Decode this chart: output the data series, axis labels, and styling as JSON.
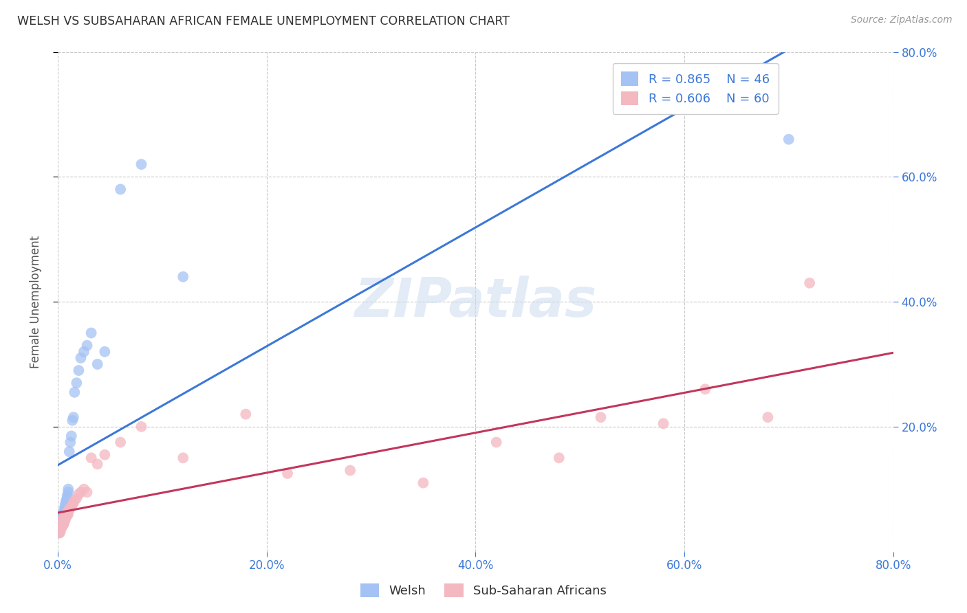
{
  "title": "WELSH VS SUBSAHARAN AFRICAN FEMALE UNEMPLOYMENT CORRELATION CHART",
  "source": "Source: ZipAtlas.com",
  "ylabel": "Female Unemployment",
  "watermark": "ZIPatlas",
  "xlim": [
    0.0,
    0.8
  ],
  "ylim": [
    0.0,
    0.8
  ],
  "xticks": [
    0.0,
    0.2,
    0.4,
    0.6,
    0.8
  ],
  "yticks": [
    0.2,
    0.4,
    0.6,
    0.8
  ],
  "background_color": "#ffffff",
  "grid_color": "#c8c8c8",
  "blue_scatter_color": "#a4c2f4",
  "pink_scatter_color": "#f4b8c1",
  "blue_line_color": "#3c78d8",
  "pink_line_color": "#c2365c",
  "legend_label_blue": "R = 0.865    N = 46",
  "legend_label_pink": "R = 0.606    N = 60",
  "legend_bottom_blue": "Welsh",
  "legend_bottom_pink": "Sub-Saharan Africans",
  "welsh_x": [
    0.001,
    0.001,
    0.001,
    0.002,
    0.002,
    0.002,
    0.002,
    0.003,
    0.003,
    0.003,
    0.003,
    0.004,
    0.004,
    0.004,
    0.005,
    0.005,
    0.005,
    0.006,
    0.006,
    0.007,
    0.007,
    0.008,
    0.008,
    0.009,
    0.009,
    0.01,
    0.01,
    0.011,
    0.012,
    0.013,
    0.014,
    0.015,
    0.016,
    0.018,
    0.02,
    0.022,
    0.025,
    0.028,
    0.032,
    0.038,
    0.045,
    0.06,
    0.08,
    0.12,
    0.62,
    0.7
  ],
  "welsh_y": [
    0.03,
    0.035,
    0.04,
    0.032,
    0.038,
    0.042,
    0.045,
    0.04,
    0.045,
    0.048,
    0.05,
    0.048,
    0.052,
    0.055,
    0.055,
    0.06,
    0.058,
    0.062,
    0.068,
    0.07,
    0.075,
    0.078,
    0.082,
    0.085,
    0.09,
    0.095,
    0.1,
    0.16,
    0.175,
    0.185,
    0.21,
    0.215,
    0.255,
    0.27,
    0.29,
    0.31,
    0.32,
    0.33,
    0.35,
    0.3,
    0.32,
    0.58,
    0.62,
    0.44,
    0.72,
    0.66
  ],
  "subsaharan_x": [
    0.001,
    0.001,
    0.001,
    0.001,
    0.002,
    0.002,
    0.002,
    0.002,
    0.002,
    0.003,
    0.003,
    0.003,
    0.003,
    0.004,
    0.004,
    0.004,
    0.004,
    0.005,
    0.005,
    0.005,
    0.005,
    0.006,
    0.006,
    0.006,
    0.007,
    0.007,
    0.008,
    0.008,
    0.009,
    0.009,
    0.01,
    0.01,
    0.011,
    0.012,
    0.013,
    0.014,
    0.015,
    0.016,
    0.018,
    0.02,
    0.022,
    0.025,
    0.028,
    0.032,
    0.038,
    0.045,
    0.06,
    0.08,
    0.12,
    0.18,
    0.22,
    0.28,
    0.35,
    0.42,
    0.48,
    0.52,
    0.58,
    0.62,
    0.68,
    0.72
  ],
  "subsaharan_y": [
    0.03,
    0.032,
    0.035,
    0.038,
    0.03,
    0.035,
    0.038,
    0.04,
    0.042,
    0.035,
    0.038,
    0.042,
    0.045,
    0.04,
    0.042,
    0.045,
    0.048,
    0.042,
    0.045,
    0.048,
    0.052,
    0.045,
    0.05,
    0.055,
    0.05,
    0.055,
    0.055,
    0.06,
    0.058,
    0.062,
    0.06,
    0.065,
    0.068,
    0.07,
    0.072,
    0.075,
    0.078,
    0.082,
    0.085,
    0.092,
    0.095,
    0.1,
    0.095,
    0.15,
    0.14,
    0.155,
    0.175,
    0.2,
    0.15,
    0.22,
    0.125,
    0.13,
    0.11,
    0.175,
    0.15,
    0.215,
    0.205,
    0.26,
    0.215,
    0.43
  ]
}
